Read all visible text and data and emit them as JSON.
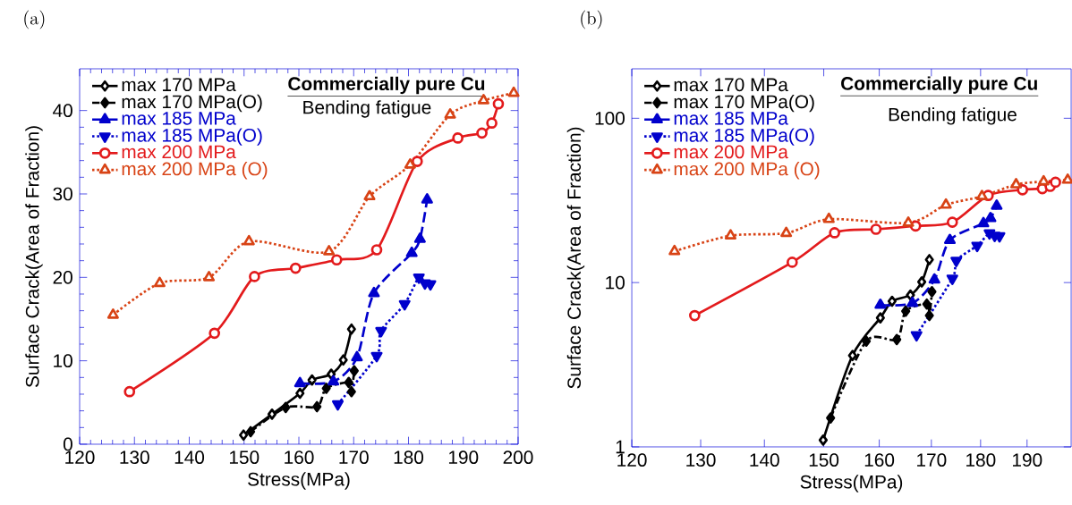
{
  "chart_data": [
    {
      "type": "line",
      "title": "(a)",
      "xlabel": "Stress(MPa)",
      "ylabel": "Surface Crack(Area of Fraction)",
      "annotations": [
        "Commercially pure Cu",
        "Bending fatigue"
      ],
      "xlim": [
        120,
        200
      ],
      "xticks": [
        120,
        130,
        140,
        150,
        160,
        170,
        180,
        190,
        200
      ],
      "ylim": [
        0,
        45
      ],
      "yticks": [
        0,
        10,
        20,
        30,
        40
      ],
      "legend": "top left",
      "series": [
        {
          "name": "max 170 MPa",
          "color": "#000000",
          "marker": "diamond-open",
          "line_style": "solid",
          "x": [
            149.9,
            155.1,
            160.2,
            162.4,
            165.9,
            168.1,
            169.6
          ],
          "values": [
            1.1,
            3.6,
            6.1,
            7.7,
            8.4,
            10.1,
            13.8
          ]
        },
        {
          "name": "max 170 MPa(O)",
          "color": "#000000",
          "marker": "diamond",
          "line_style": "dashdot",
          "x": [
            151.2,
            157.6,
            163.3,
            165,
            169.1,
            169.6,
            170.1
          ],
          "values": [
            1.5,
            4.4,
            4.5,
            6.7,
            7.4,
            6.3,
            8.8
          ]
        },
        {
          "name": "max 185 MPa",
          "color": "#0000cc",
          "marker": "triangle",
          "line_style": "dashed",
          "x": [
            160.2,
            166.3,
            170.6,
            173.7,
            180.6,
            182.1,
            183.4
          ],
          "values": [
            7.3,
            7.5,
            10.4,
            18.1,
            22.9,
            24.6,
            29.3
          ]
        },
        {
          "name": "max 185 MPa(O)",
          "color": "#0000cc",
          "marker": "triangle-down",
          "line_style": "dotted",
          "x": [
            167.1,
            174.2,
            175,
            179.3,
            181.9,
            183,
            184
          ],
          "values": [
            4.8,
            10.6,
            13.6,
            16.8,
            20,
            19.3,
            19.2
          ]
        },
        {
          "name": "max 200 MPa",
          "color": "#e31a1c",
          "marker": "circle-open",
          "line_style": "solid",
          "x": [
            129.1,
            144.6,
            151.9,
            159.4,
            166.9,
            174.2,
            181.6,
            189,
            193.4,
            195.2,
            196.4
          ],
          "values": [
            6.3,
            13.3,
            20.1,
            21.1,
            22.1,
            23.3,
            33.9,
            36.7,
            37.3,
            38.5,
            40.8
          ]
        },
        {
          "name": "max 200 MPa (O)",
          "color": "#d84315",
          "marker": "triangle-open",
          "line_style": "dotted",
          "x": [
            126.1,
            134.6,
            143.6,
            150.9,
            165.5,
            172.9,
            180.3,
            187.6,
            193.7,
            199.2
          ],
          "values": [
            15.5,
            19.3,
            20,
            24.3,
            23.1,
            29.7,
            33.5,
            39.5,
            41.2,
            42.1
          ]
        }
      ]
    },
    {
      "type": "line",
      "title": "(b)",
      "xlabel": "Stress(MPa)",
      "ylabel": "Surface Crack(Area of Fraction)",
      "annotations": [
        "Commercially pure Cu",
        "Bending fatigue"
      ],
      "log": "xy",
      "xlim": [
        120,
        200
      ],
      "xticks": [
        120,
        130,
        140,
        150,
        160,
        170,
        180,
        190
      ],
      "ylim": [
        1,
        200
      ],
      "yticks": [
        1,
        10,
        100
      ],
      "legend": "top left",
      "series": [
        {
          "name": "max 170 MPa",
          "color": "#000000",
          "marker": "diamond-open",
          "line_style": "solid",
          "x": [
            149.9,
            155.1,
            160.2,
            162.4,
            165.9,
            168.1,
            169.6
          ],
          "values": [
            1.1,
            3.6,
            6.1,
            7.7,
            8.4,
            10.1,
            13.8
          ]
        },
        {
          "name": "max 170 MPa(O)",
          "color": "#000000",
          "marker": "diamond",
          "line_style": "dashdot",
          "x": [
            151.2,
            157.6,
            163.3,
            165,
            169.1,
            169.6,
            170.1
          ],
          "values": [
            1.5,
            4.4,
            4.5,
            6.7,
            7.4,
            6.3,
            8.8
          ]
        },
        {
          "name": "max 185 MPa",
          "color": "#0000cc",
          "marker": "triangle",
          "line_style": "dashed",
          "x": [
            160.2,
            166.3,
            170.6,
            173.7,
            180.6,
            182.1,
            183.4
          ],
          "values": [
            7.3,
            7.5,
            10.4,
            18.1,
            22.9,
            24.6,
            29.3
          ]
        },
        {
          "name": "max 185 MPa(O)",
          "color": "#0000cc",
          "marker": "triangle-down",
          "line_style": "dotted",
          "x": [
            167.1,
            174.2,
            175,
            179.3,
            181.9,
            183,
            184
          ],
          "values": [
            4.8,
            10.6,
            13.6,
            16.8,
            20,
            19.3,
            19.2
          ]
        },
        {
          "name": "max 200 MPa",
          "color": "#e31a1c",
          "marker": "circle-open",
          "line_style": "solid",
          "x": [
            129.1,
            144.6,
            151.9,
            159.4,
            166.9,
            174.2,
            181.6,
            189,
            193.4,
            195.2,
            196.4
          ],
          "values": [
            6.3,
            13.3,
            20.1,
            21.1,
            22.1,
            23.3,
            33.9,
            36.7,
            37.3,
            38.5,
            40.8
          ]
        },
        {
          "name": "max 200 MPa (O)",
          "color": "#d84315",
          "marker": "triangle-open",
          "line_style": "dotted",
          "x": [
            126.1,
            134.6,
            143.6,
            150.9,
            165.5,
            172.9,
            180.3,
            187.6,
            193.7,
            199.2
          ],
          "values": [
            15.5,
            19.3,
            20,
            24.3,
            23.1,
            29.7,
            33.5,
            39.5,
            41.2,
            42.1
          ]
        }
      ]
    }
  ]
}
